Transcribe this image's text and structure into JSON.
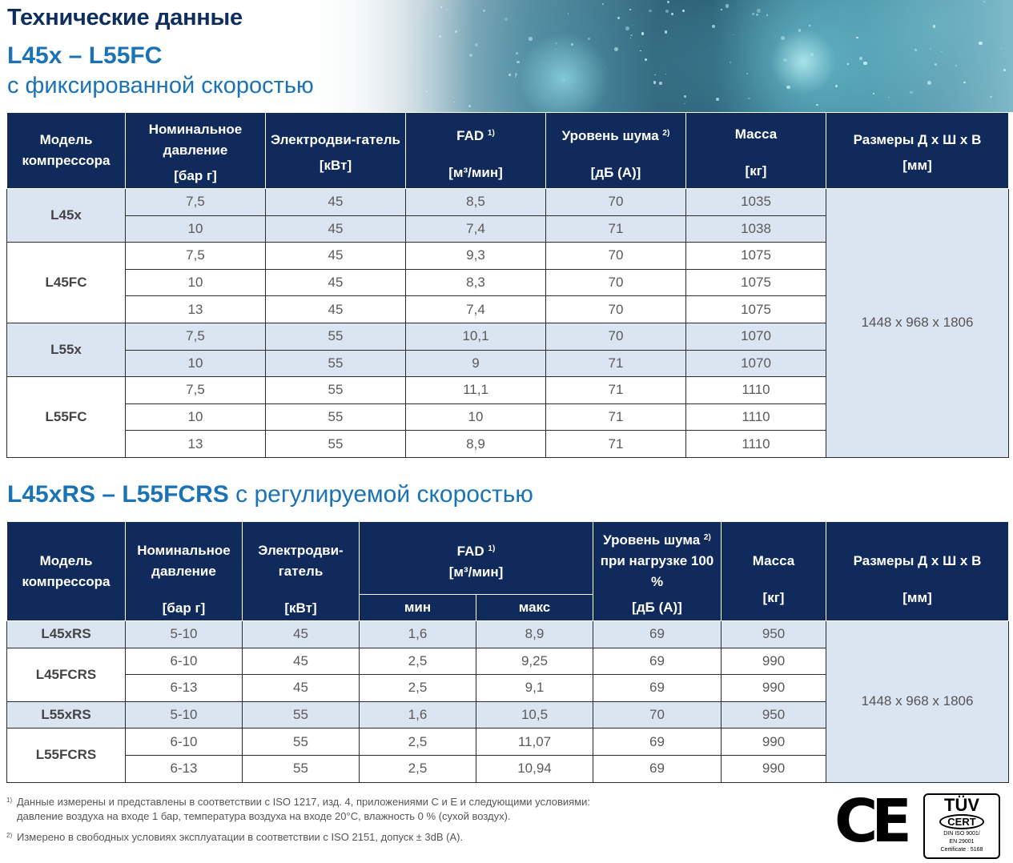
{
  "header": {
    "title": "Технические данные",
    "model_range": "L45x – L55FC",
    "subtitle": "с фиксированной скоростью"
  },
  "table1": {
    "headers": [
      {
        "label": "Модель компрессора",
        "unit": ""
      },
      {
        "label": "Номинальное давление",
        "unit": "[бар г]"
      },
      {
        "label": "Электродви-гатель",
        "unit": "[кВт]"
      },
      {
        "label": "FAD",
        "sup": "1)",
        "unit": "[м³/мин]"
      },
      {
        "label": "Уровень шума",
        "sup": "2)",
        "unit": "[дБ (А)]"
      },
      {
        "label": "Масса",
        "unit": "[кг]"
      },
      {
        "label": "Размеры Д х Ш х В",
        "unit": "[мм]"
      }
    ],
    "dimensions": "1448 x 968 x 1806",
    "groups": [
      {
        "model": "L45x",
        "rows": [
          [
            "7,5",
            "45",
            "8,5",
            "70",
            "1035"
          ],
          [
            "10",
            "45",
            "7,4",
            "71",
            "1038"
          ]
        ]
      },
      {
        "model": "L45FC",
        "rows": [
          [
            "7,5",
            "45",
            "9,3",
            "70",
            "1075"
          ],
          [
            "10",
            "45",
            "8,3",
            "70",
            "1075"
          ],
          [
            "13",
            "45",
            "7,4",
            "70",
            "1075"
          ]
        ]
      },
      {
        "model": "L55x",
        "rows": [
          [
            "7,5",
            "55",
            "10,1",
            "70",
            "1070"
          ],
          [
            "10",
            "55",
            "9",
            "71",
            "1070"
          ]
        ]
      },
      {
        "model": "L55FC",
        "rows": [
          [
            "7,5",
            "55",
            "11,1",
            "71",
            "1110"
          ],
          [
            "10",
            "55",
            "10",
            "71",
            "1110"
          ],
          [
            "13",
            "55",
            "8,9",
            "71",
            "1110"
          ]
        ]
      }
    ]
  },
  "section2": {
    "model_range": "L45xRS – L55FCRS",
    "subtitle": " с регулируемой скоростью"
  },
  "table2": {
    "headers": [
      {
        "label": "Модель компрессора",
        "unit": ""
      },
      {
        "label": "Номинальное давление",
        "unit": "[бар г]"
      },
      {
        "label": "Электродви-гатель",
        "unit": "[кВт]"
      },
      {
        "label": "FAD",
        "sup": "1)",
        "label2": "[м³/мин]",
        "sub_min": "мин",
        "sub_max": "макс"
      },
      {
        "label": "Уровень шума",
        "sup": "2)",
        "label_tail": " при нагрузке 100 %",
        "unit": "[дБ (А)]"
      },
      {
        "label": "Масса",
        "unit": "[кг]"
      },
      {
        "label": "Размеры Д х Ш х В",
        "unit": "[мм]"
      }
    ],
    "dimensions": "1448 x 968 x 1806",
    "groups": [
      {
        "model": "L45xRS",
        "rows": [
          [
            "5-10",
            "45",
            "1,6",
            "8,9",
            "69",
            "950"
          ]
        ]
      },
      {
        "model": "L45FCRS",
        "rows": [
          [
            "6-10",
            "45",
            "2,5",
            "9,25",
            "69",
            "990"
          ],
          [
            "6-13",
            "45",
            "2,5",
            "9,1",
            "69",
            "990"
          ]
        ]
      },
      {
        "model": "L55xRS",
        "rows": [
          [
            "5-10",
            "55",
            "1,6",
            "10,5",
            "70",
            "950"
          ]
        ]
      },
      {
        "model": "L55FCRS",
        "rows": [
          [
            "6-10",
            "55",
            "2,5",
            "11,07",
            "69",
            "990"
          ],
          [
            "6-13",
            "55",
            "2,5",
            "10,94",
            "69",
            "990"
          ]
        ]
      }
    ]
  },
  "footnotes": {
    "fn1_mark": "1)",
    "fn1_line1": "Данные измерены и представлены в соответствии с ISO 1217, изд. 4, приложениями С и Е и следующими условиями:",
    "fn1_line2": "давление воздуха на входе 1 бар, температура воздуха на входе 20°С, влажность 0 % (сухой воздух).",
    "fn2_mark": "2)",
    "fn2_line1": "Измерено в свободных условиях эксплуатации в соответствии с ISO 2151, допуск ± 3dB (A)."
  },
  "logos": {
    "ce_mark": "CE",
    "tuv_brand": "TÜV",
    "tuv_cert": "CERT",
    "tuv_standard1": "DIN ISO 9001/",
    "tuv_standard2": "EN 29001",
    "tuv_certificate": "Certificate : 5168"
  }
}
